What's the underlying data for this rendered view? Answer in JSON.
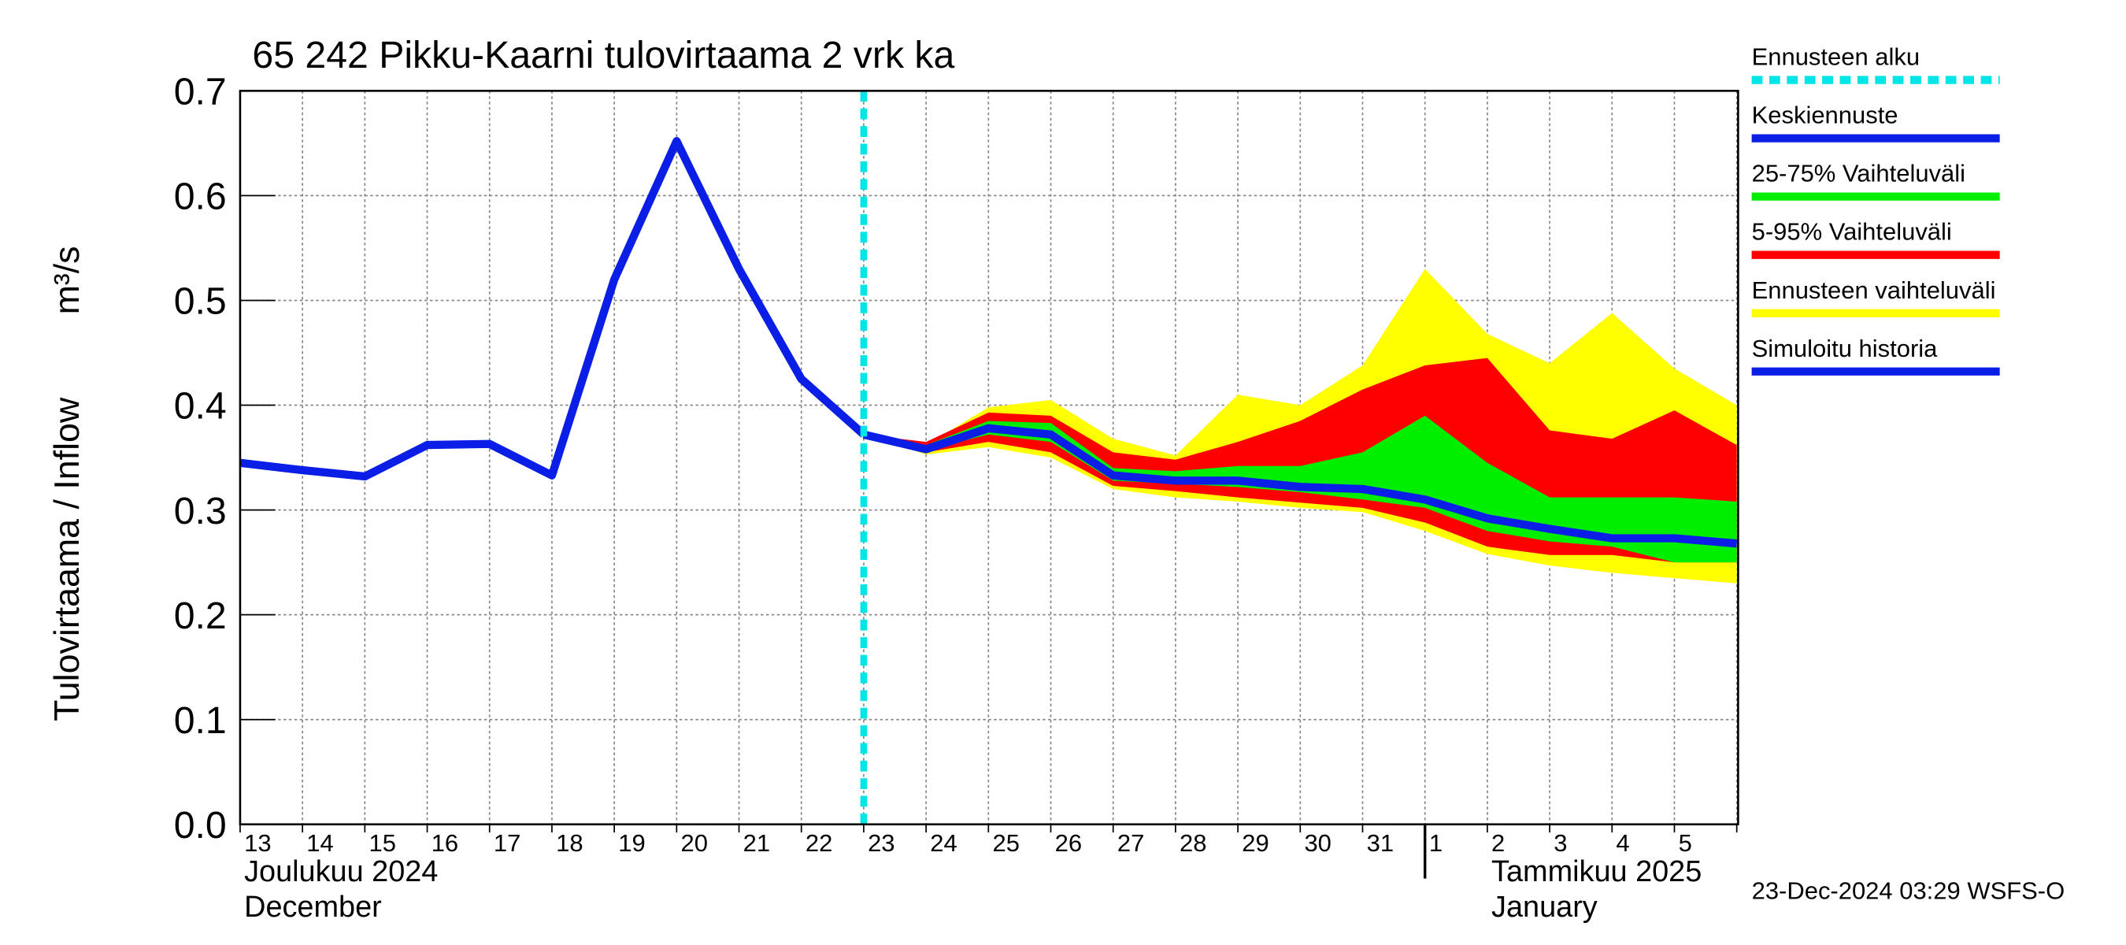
{
  "chart_data": {
    "type": "line",
    "title": "65 242 Pikku-Kaarni tulovirtaama 2 vrk ka",
    "ylabel": "Tulovirtaama / Inflow",
    "yunit": "m³/s",
    "footer": "23-Dec-2024 03:29 WSFS-O",
    "months": [
      {
        "fi": "Joulukuu  2024",
        "en": "December"
      },
      {
        "fi": "Tammikuu  2025",
        "en": "January"
      }
    ],
    "categories": [
      "13",
      "14",
      "15",
      "16",
      "17",
      "18",
      "19",
      "20",
      "21",
      "22",
      "23",
      "24",
      "25",
      "26",
      "27",
      "28",
      "29",
      "30",
      "31",
      "1",
      "2",
      "3",
      "4",
      "5",
      null
    ],
    "ylim": [
      0,
      0.7
    ],
    "yticks": [
      {
        "value": 0,
        "label": "0.0"
      },
      0.1,
      0.2,
      0.3,
      0.4,
      0.5,
      0.6,
      0.7
    ],
    "grid": true,
    "forecast_start": {
      "name": "Ennusteen alku",
      "color": "#00e5e5",
      "index": 10
    },
    "series": [
      {
        "name": "Simuloitu historia",
        "color": "#0a1ee6",
        "values": [
          0.345,
          0.338,
          0.332,
          0.362,
          0.363,
          0.333,
          0.52,
          0.652,
          0.53,
          0.425,
          0.372,
          null,
          null,
          null,
          null,
          null,
          null,
          null,
          null,
          null,
          null,
          null,
          null,
          null,
          null
        ]
      },
      {
        "name": "Keskiennuste",
        "color": "#0a1ee6",
        "values": [
          null,
          null,
          null,
          null,
          null,
          null,
          null,
          null,
          null,
          null,
          0.372,
          0.358,
          0.378,
          0.372,
          0.333,
          0.328,
          0.328,
          0.322,
          0.32,
          0.31,
          0.292,
          0.282,
          0.273,
          0.273,
          0.268
        ]
      }
    ],
    "bands": [
      {
        "name": "Ennusteen vaihteluväli",
        "color": "#ffff00",
        "high": [
          null,
          null,
          null,
          null,
          null,
          null,
          null,
          null,
          null,
          null,
          0.372,
          0.362,
          0.398,
          0.405,
          0.368,
          0.352,
          0.41,
          0.4,
          0.438,
          0.53,
          0.468,
          0.44,
          0.488,
          0.435,
          0.4
        ],
        "low": [
          null,
          null,
          null,
          null,
          null,
          null,
          null,
          null,
          null,
          null,
          0.372,
          0.353,
          0.36,
          0.35,
          0.32,
          0.312,
          0.308,
          0.302,
          0.298,
          0.28,
          0.258,
          0.247,
          0.24,
          0.235,
          0.23
        ]
      },
      {
        "name": "5-95% Vaihteluväli",
        "color": "#ff0000",
        "high": [
          null,
          null,
          null,
          null,
          null,
          null,
          null,
          null,
          null,
          null,
          0.372,
          0.365,
          0.393,
          0.39,
          0.355,
          0.348,
          0.365,
          0.385,
          0.415,
          0.438,
          0.445,
          0.376,
          0.368,
          0.395,
          0.362
        ],
        "low": [
          null,
          null,
          null,
          null,
          null,
          null,
          null,
          null,
          null,
          null,
          0.372,
          0.355,
          0.365,
          0.355,
          0.323,
          0.318,
          0.312,
          0.307,
          0.302,
          0.288,
          0.265,
          0.257,
          0.257,
          0.25,
          0.25
        ]
      },
      {
        "name": "25-75% Vaihteluväli",
        "color": "#00ee00",
        "high": [
          null,
          null,
          null,
          null,
          null,
          null,
          null,
          null,
          null,
          null,
          0.372,
          0.362,
          0.385,
          0.383,
          0.34,
          0.337,
          0.342,
          0.342,
          0.355,
          0.39,
          0.345,
          0.312,
          0.312,
          0.312,
          0.308
        ],
        "low": [
          null,
          null,
          null,
          null,
          null,
          null,
          null,
          null,
          null,
          null,
          0.372,
          0.357,
          0.372,
          0.365,
          0.328,
          0.325,
          0.322,
          0.317,
          0.31,
          0.302,
          0.28,
          0.27,
          0.265,
          0.25,
          0.25
        ]
      }
    ]
  }
}
